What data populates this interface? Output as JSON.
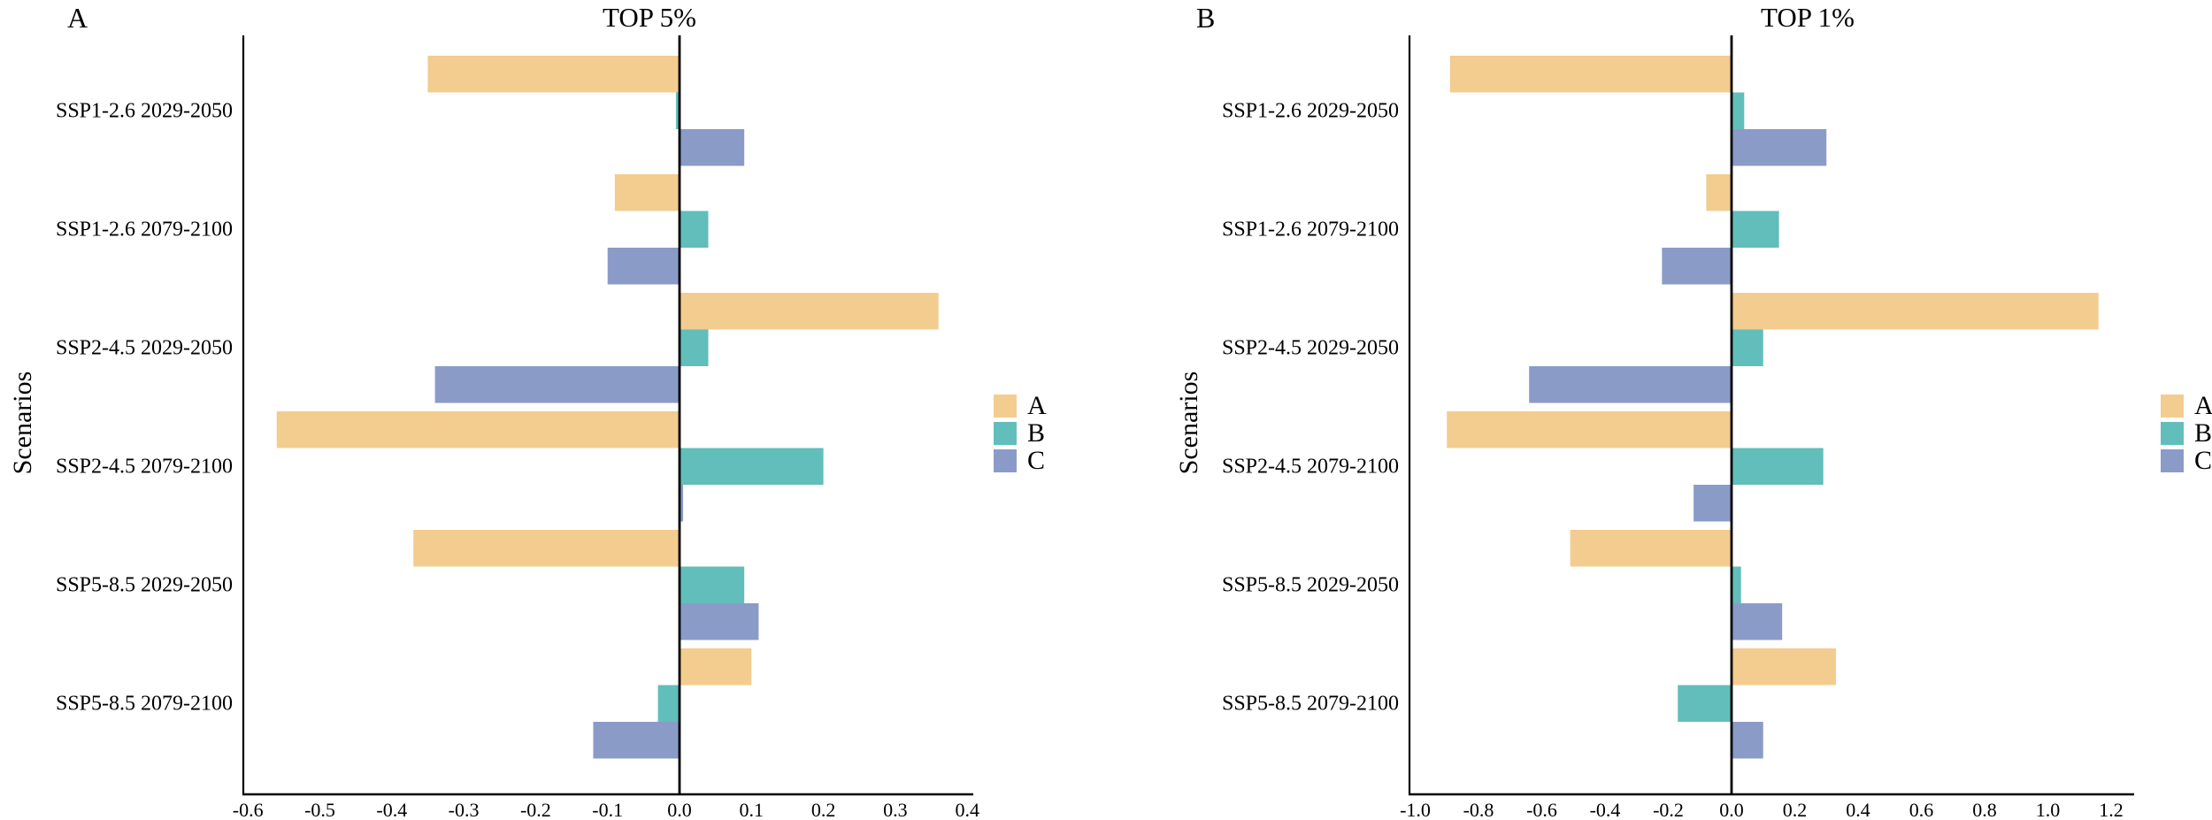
{
  "figure": {
    "background": "#ffffff",
    "text_color": "#000000",
    "axis_color": "#000000",
    "series_colors": {
      "A": "#F3CC8F",
      "B": "#62BEBA",
      "C": "#8B9BC8"
    }
  },
  "chart_data": [
    {
      "type": "bar",
      "orientation": "horizontal",
      "panel_letter": "A",
      "title": "TOP 5%",
      "ylabel": "Scenarios",
      "categories": [
        "SSP1-2.6 2029-2050",
        "SSP1-2.6 2079-2100",
        "SSP2-4.5 2029-2050",
        "SSP2-4.5 2079-2100",
        "SSP5-8.5 2029-2050",
        "SSP5-8.5 2079-2100"
      ],
      "series": [
        {
          "name": "A",
          "values": [
            -0.35,
            -0.09,
            0.36,
            -0.56,
            -0.37,
            0.1
          ]
        },
        {
          "name": "B",
          "values": [
            -0.005,
            0.04,
            0.04,
            0.2,
            0.09,
            -0.03
          ]
        },
        {
          "name": "C",
          "values": [
            0.09,
            -0.1,
            -0.34,
            0.005,
            0.11,
            -0.12
          ]
        }
      ],
      "x_tick_labels": [
        "-0.6",
        "-0.5",
        "-0.4",
        "-0.3",
        "-0.2",
        "-0.1",
        "0.0",
        "0.1",
        "0.2",
        "0.3",
        "0.4"
      ],
      "xlim": [
        -0.61,
        0.41
      ],
      "grid": false,
      "legend": [
        "A",
        "B",
        "C"
      ],
      "legend_position": "right"
    },
    {
      "type": "bar",
      "orientation": "horizontal",
      "panel_letter": "B",
      "title": "TOP 1%",
      "ylabel": "Scenarios",
      "categories": [
        "SSP1-2.6 2029-2050",
        "SSP1-2.6 2079-2100",
        "SSP2-4.5 2029-2050",
        "SSP2-4.5 2079-2100",
        "SSP5-8.5 2029-2050",
        "SSP5-8.5 2079-2100"
      ],
      "series": [
        {
          "name": "A",
          "values": [
            -0.89,
            -0.08,
            1.16,
            -0.9,
            -0.51,
            0.33
          ]
        },
        {
          "name": "B",
          "values": [
            0.04,
            0.15,
            0.1,
            0.29,
            0.03,
            -0.17
          ]
        },
        {
          "name": "C",
          "values": [
            0.3,
            -0.22,
            -0.64,
            -0.12,
            0.16,
            0.1
          ]
        }
      ],
      "x_tick_labels": [
        "-1.0",
        "-0.8",
        "-0.6",
        "-0.4",
        "-0.2",
        "0.0",
        "0.2",
        "0.4",
        "0.6",
        "0.8",
        "1.0",
        "1.2"
      ],
      "xlim": [
        -1.02,
        1.28
      ],
      "grid": false,
      "legend": [
        "A",
        "B",
        "C"
      ],
      "legend_position": "right"
    }
  ]
}
